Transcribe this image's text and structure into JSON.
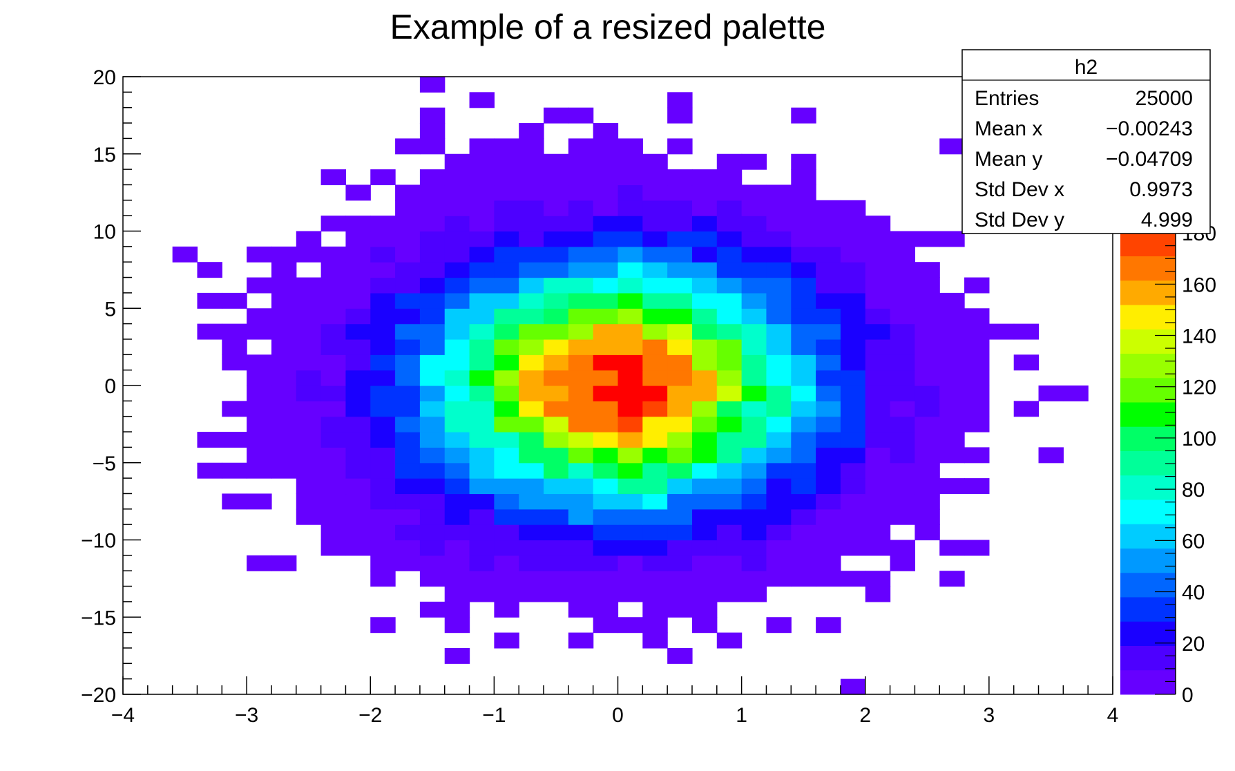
{
  "chart_data": {
    "type": "heatmap",
    "title": "Example of a resized palette",
    "xlabel": "",
    "ylabel": "",
    "xlim": [
      -4,
      4
    ],
    "ylim": [
      -20,
      20
    ],
    "x_ticks": [
      "−4",
      "−3",
      "−2",
      "−1",
      "0",
      "1",
      "2",
      "3",
      "4"
    ],
    "x_tick_values": [
      -4,
      -3,
      -2,
      -1,
      0,
      1,
      2,
      3,
      4
    ],
    "y_ticks": [
      "−20",
      "−15",
      "−10",
      "−5",
      "0",
      "5",
      "10",
      "15",
      "20"
    ],
    "y_tick_values": [
      -20,
      -15,
      -10,
      -5,
      0,
      5,
      10,
      15,
      20
    ],
    "bins_x": 40,
    "bins_y": 40,
    "grid": false,
    "z_range": [
      0,
      190
    ],
    "z_ticks": [
      0,
      20,
      40,
      60,
      80,
      100,
      120,
      140,
      160,
      180
    ],
    "palette": [
      "#6600ff",
      "#4d00ff",
      "#1a00ff",
      "#0033ff",
      "#0066ff",
      "#0099ff",
      "#00ccff",
      "#00ffff",
      "#00ffcc",
      "#00ff99",
      "#00ff66",
      "#00ff00",
      "#66ff00",
      "#99ff00",
      "#ccff00",
      "#ffee00",
      "#ffaa00",
      "#ff7700",
      "#ff4400",
      "#ff0000"
    ],
    "sigma_x": 0.9973,
    "sigma_y": 4.999,
    "peak": 185,
    "seed": 7,
    "stats": {
      "name": "h2",
      "rows": [
        {
          "label": "Entries",
          "value": "25000"
        },
        {
          "label": "Mean x",
          "value": "−0.00243"
        },
        {
          "label": "Mean y",
          "value": "−0.04709"
        },
        {
          "label": "Std Dev x",
          "value": "0.9973"
        },
        {
          "label": "Std Dev y",
          "value": "4.999"
        }
      ]
    }
  }
}
